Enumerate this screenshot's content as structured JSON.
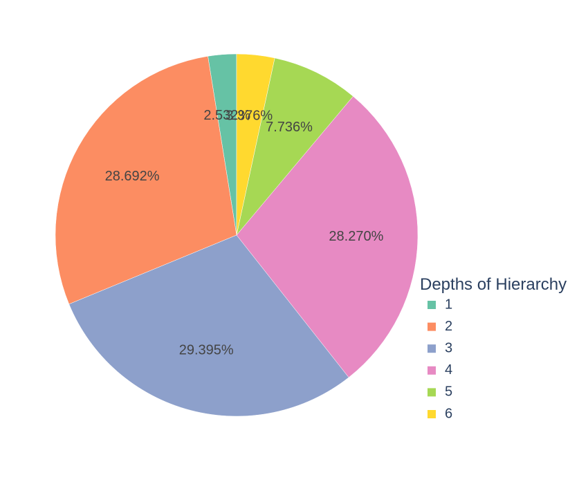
{
  "chart_data": {
    "type": "pie",
    "legend": {
      "title": "Depths of Hierarchy",
      "placement": "right"
    },
    "slices": [
      {
        "label": "1",
        "value": 2.532,
        "text": "2.532%",
        "color": "#66c2a5"
      },
      {
        "label": "2",
        "value": 28.692,
        "text": "28.692%",
        "color": "#fc8d62"
      },
      {
        "label": "3",
        "value": 29.395,
        "text": "29.395%",
        "color": "#8da0cb"
      },
      {
        "label": "4",
        "value": 28.27,
        "text": "28.270%",
        "color": "#e78ac3"
      },
      {
        "label": "5",
        "value": 7.736,
        "text": "7.736%",
        "color": "#a6d854"
      },
      {
        "label": "6",
        "value": 3.376,
        "text": "3.376%",
        "color": "#ffd92f"
      }
    ],
    "direction": "counterclockwise",
    "start": "top"
  }
}
